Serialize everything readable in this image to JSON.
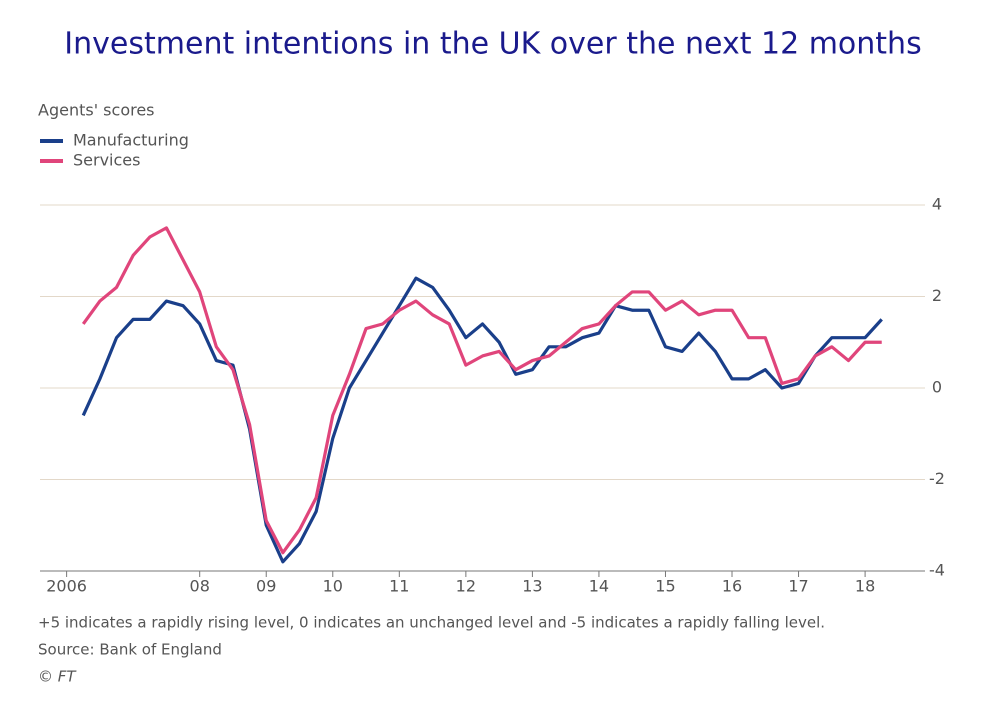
{
  "chart_data": {
    "type": "line",
    "title": "Investment intentions in the UK over the next 12 months",
    "y_label": "Agents' scores",
    "note": "+5 indicates a rapidly rising level, 0 indicates an unchanged level and -5 indicates a rapidly falling level.",
    "source": "Source: Bank of England",
    "credit": "© FT",
    "x": [
      2006.25,
      2006.5,
      2006.75,
      2007,
      2007.25,
      2007.5,
      2007.75,
      2008,
      2008.25,
      2008.5,
      2008.75,
      2009,
      2009.25,
      2009.5,
      2009.75,
      2010,
      2010.25,
      2010.5,
      2010.75,
      2011,
      2011.25,
      2011.5,
      2011.75,
      2012,
      2012.25,
      2012.5,
      2012.75,
      2013,
      2013.25,
      2013.5,
      2013.75,
      2014,
      2014.25,
      2014.5,
      2014.75,
      2015,
      2015.25,
      2015.5,
      2015.75,
      2016,
      2016.25,
      2016.5,
      2016.75,
      2017,
      2017.25,
      2017.5,
      2017.75,
      2018,
      2018.25
    ],
    "series": [
      {
        "name": "Manufacturing",
        "color": "#1a3f8a",
        "values": [
          -0.6,
          0.2,
          1.1,
          1.5,
          1.5,
          1.9,
          1.8,
          1.4,
          0.6,
          0.5,
          -0.9,
          -3.0,
          -3.8,
          -3.4,
          -2.7,
          -1.1,
          0.0,
          0.6,
          1.2,
          1.8,
          2.4,
          2.2,
          1.7,
          1.1,
          1.4,
          1.0,
          0.3,
          0.4,
          0.9,
          0.9,
          1.1,
          1.2,
          1.8,
          1.7,
          1.7,
          0.9,
          0.8,
          1.2,
          0.8,
          0.2,
          0.2,
          0.4,
          0.0,
          0.1,
          0.7,
          1.1,
          1.1,
          1.1,
          1.5
        ]
      },
      {
        "name": "Services",
        "color": "#e0457b",
        "values": [
          1.4,
          1.9,
          2.2,
          2.9,
          3.3,
          3.5,
          2.8,
          2.1,
          0.9,
          0.4,
          -0.8,
          -2.9,
          -3.6,
          -3.1,
          -2.4,
          -0.6,
          0.3,
          1.3,
          1.4,
          1.7,
          1.9,
          1.6,
          1.4,
          0.5,
          0.7,
          0.8,
          0.4,
          0.6,
          0.7,
          1.0,
          1.3,
          1.4,
          1.8,
          2.1,
          2.1,
          1.7,
          1.9,
          1.6,
          1.7,
          1.7,
          1.1,
          1.1,
          0.1,
          0.2,
          0.7,
          0.9,
          0.6,
          1.0,
          1.0
        ]
      }
    ],
    "xlim": [
      2005.6,
      2018.75
    ],
    "xticks": [
      2006,
      {
        "value": 2008,
        "label": "08"
      },
      {
        "value": 2009,
        "label": "09"
      },
      {
        "value": 2010,
        "label": "10"
      },
      {
        "value": 2011,
        "label": "11"
      },
      {
        "value": 2012,
        "label": "12"
      },
      {
        "value": 2013,
        "label": "13"
      },
      {
        "value": 2014,
        "label": "14"
      },
      {
        "value": 2015,
        "label": "15"
      },
      {
        "value": 2016,
        "label": "16"
      },
      {
        "value": 2017,
        "label": "17"
      },
      {
        "value": 2018,
        "label": "18"
      }
    ],
    "ylim": [
      -4,
      4
    ],
    "yticks": [
      4,
      2,
      0,
      -2,
      -4
    ],
    "grid": true
  }
}
